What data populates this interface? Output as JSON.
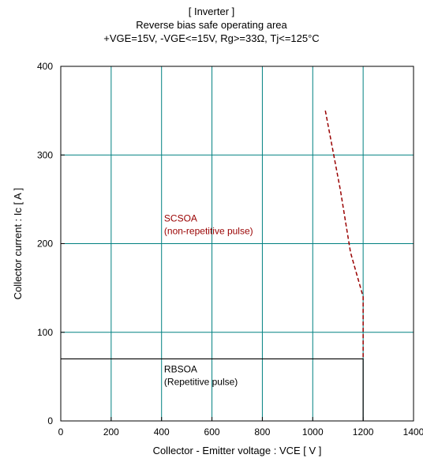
{
  "chart_data": {
    "type": "line",
    "title": "[ Inverter ]",
    "subtitle": "Reverse bias safe operating area",
    "conditions": "+VGE=15V, -VGE<=15V, Rg>=33Ω, Tj<=125°C",
    "xlabel": "Collector - Emitter voltage : VCE [ V ]",
    "ylabel": "Collector current : Ic [ A ]",
    "xlim": [
      0,
      1400
    ],
    "ylim": [
      0,
      400
    ],
    "xticks": [
      0,
      200,
      400,
      600,
      800,
      1000,
      1200,
      1400
    ],
    "yticks": [
      0,
      100,
      200,
      300,
      400
    ],
    "grid": true,
    "series": [
      {
        "name": "RBSOA",
        "style": "solid",
        "color": "#000000",
        "x": [
          0,
          1200,
          1200
        ],
        "y": [
          70,
          70,
          0
        ]
      },
      {
        "name": "SCSOA",
        "style": "dashed",
        "color": "#990000",
        "x": [
          1050,
          1110,
          1150,
          1200,
          1200
        ],
        "y": [
          350,
          260,
          190,
          140,
          70
        ]
      }
    ],
    "annotations": [
      {
        "lines": [
          "SCSOA",
          "(non-repetitive pulse)"
        ],
        "x": 410,
        "y": 225,
        "color": "#990000"
      },
      {
        "lines": [
          "RBSOA",
          "(Repetitive pulse)"
        ],
        "x": 410,
        "y": 55,
        "color": "#000000"
      }
    ],
    "colors": {
      "grid": "#008080",
      "frame": "#000000"
    }
  }
}
